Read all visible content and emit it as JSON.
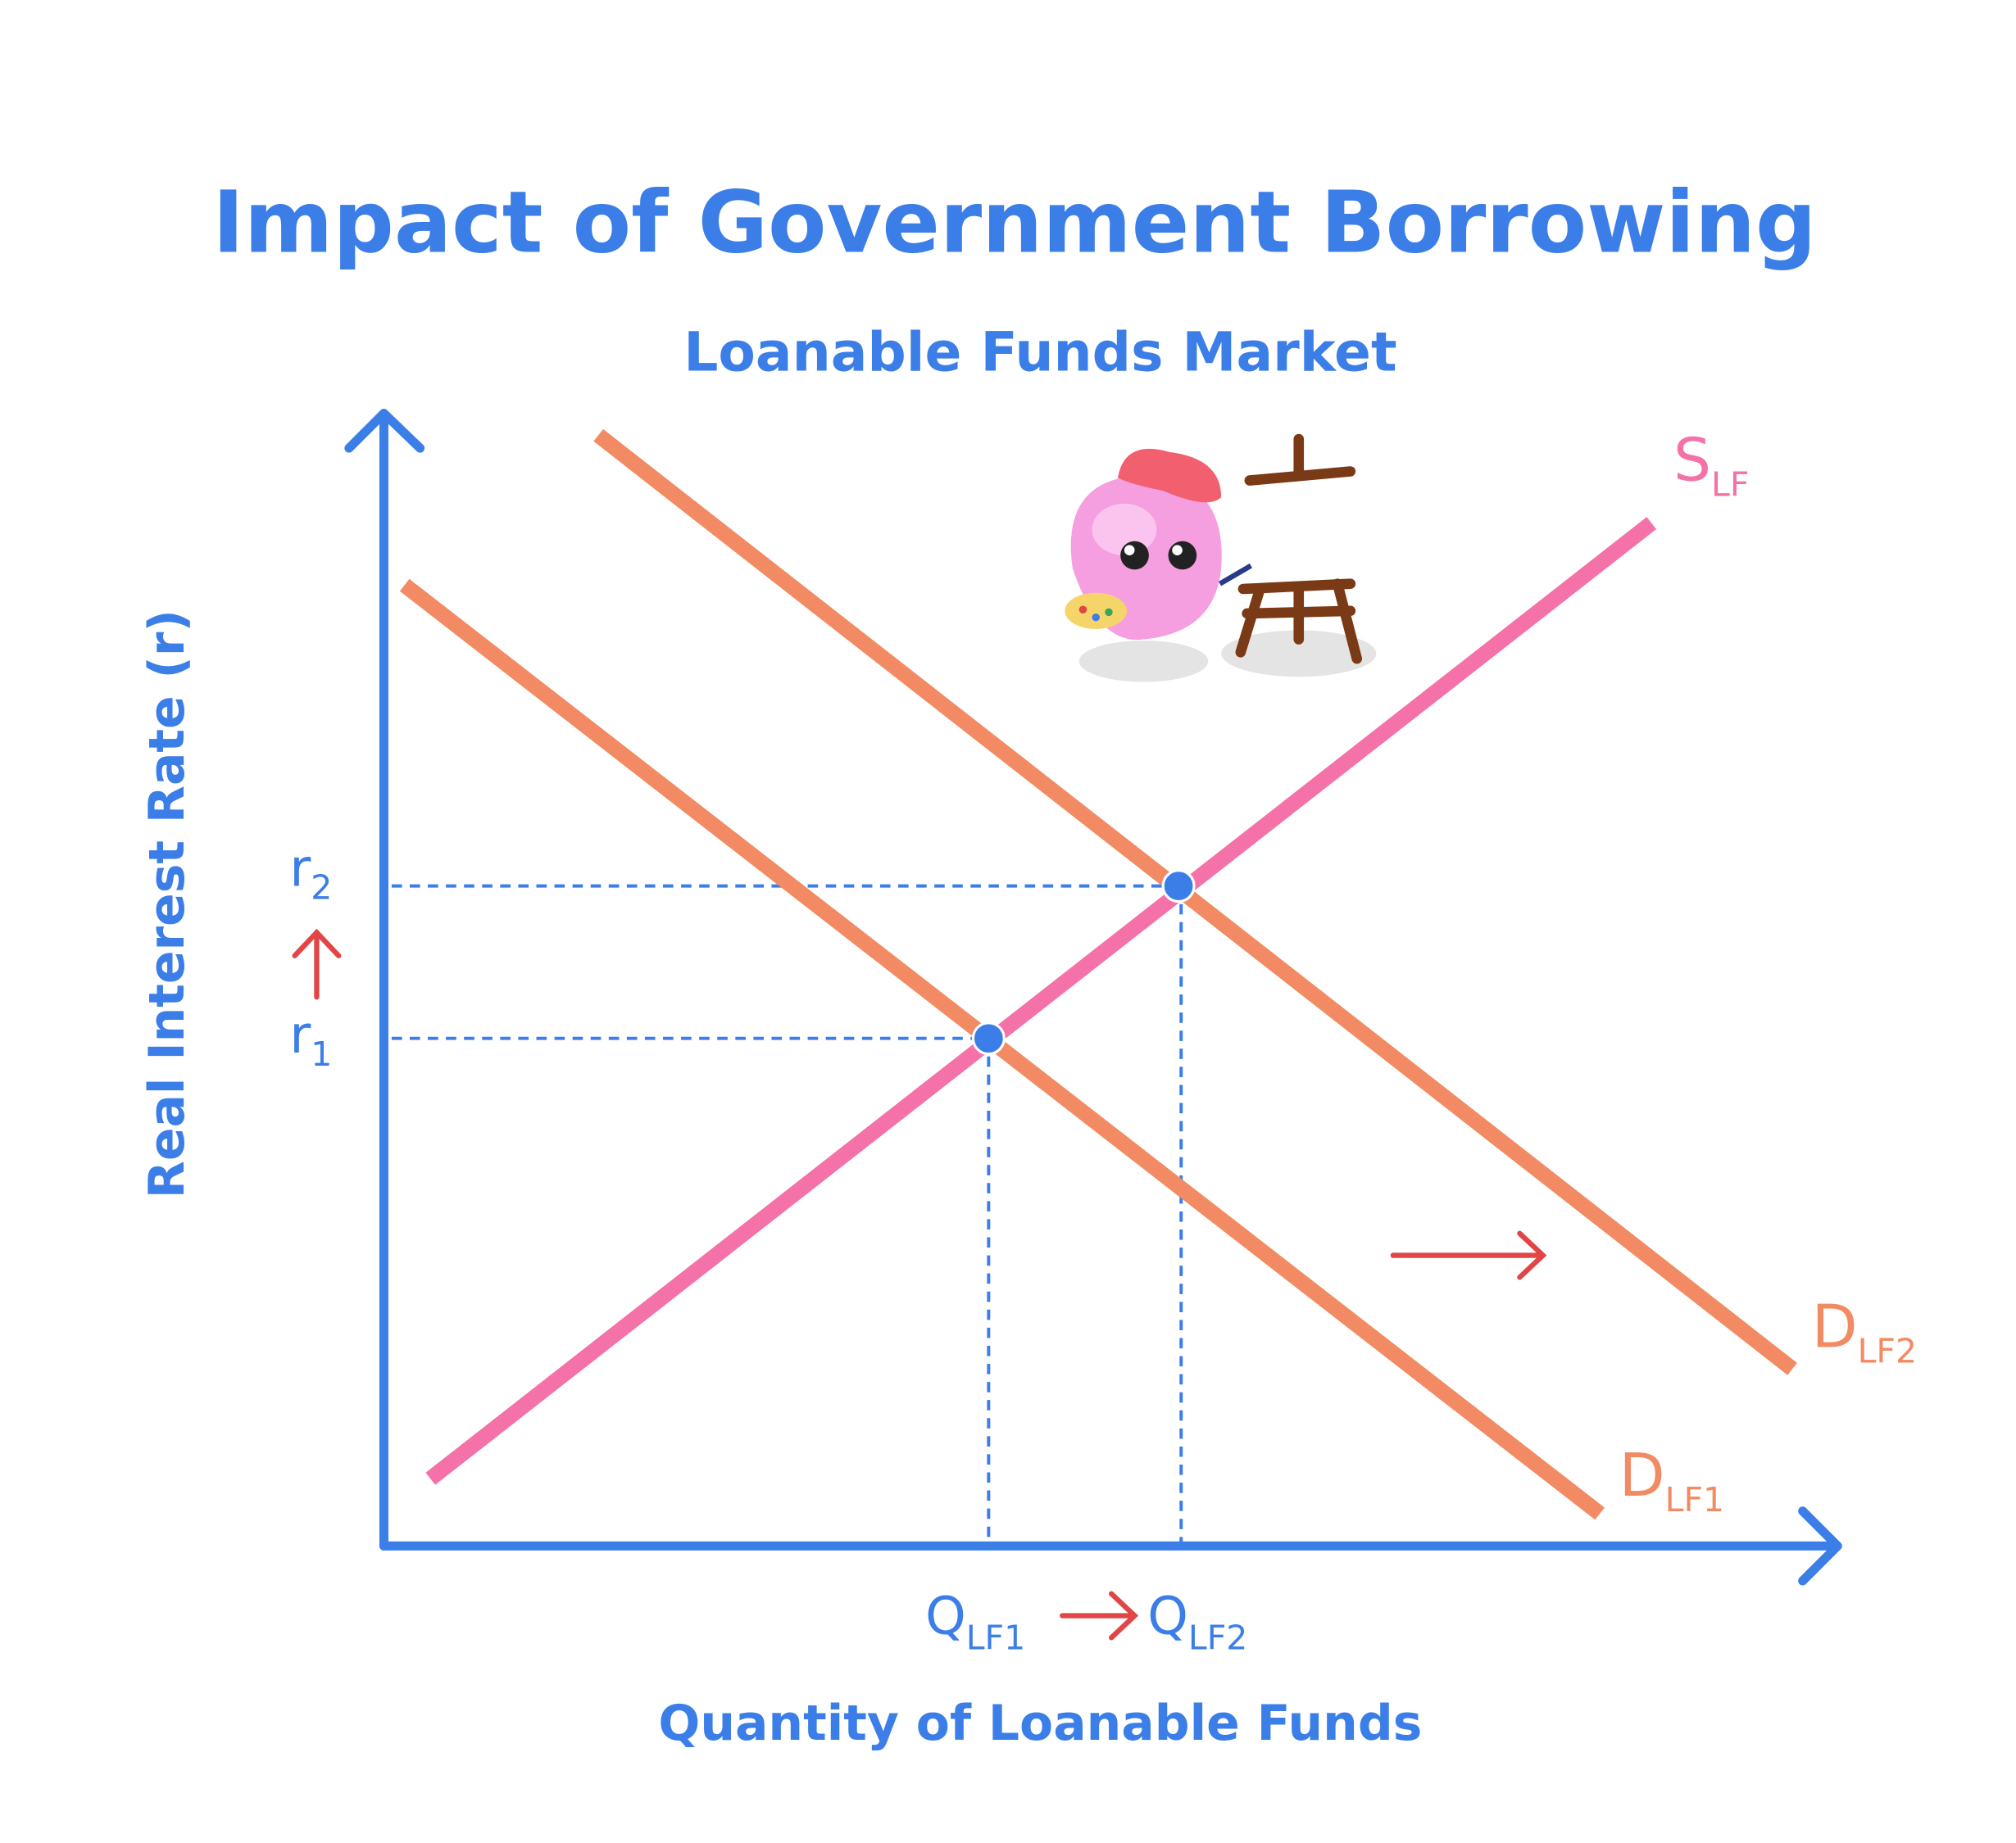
{
  "title": "Impact of Government Borrowing",
  "subtitle": "Loanable Funds Market",
  "axes": {
    "x_label": "Quantity of Loanable Funds",
    "y_label": "Real Interest Rate (r)"
  },
  "curves": [
    {
      "name": "S",
      "sub": "LF"
    },
    {
      "name": "D",
      "sub": "LF2"
    },
    {
      "name": "D",
      "sub": "LF1"
    }
  ],
  "y_markers": [
    {
      "name": "r",
      "sub": "2"
    },
    {
      "name": "r",
      "sub": "1"
    }
  ],
  "x_markers": [
    {
      "name": "Q",
      "sub": "LF1"
    },
    {
      "name": "Q",
      "sub": "LF2"
    }
  ]
}
